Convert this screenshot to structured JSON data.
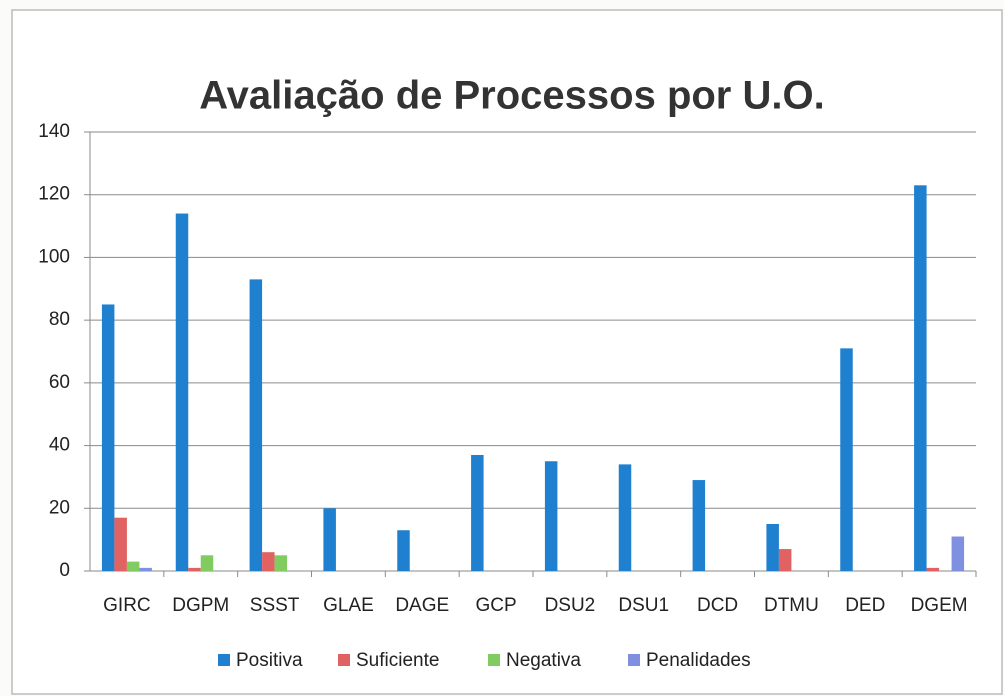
{
  "chart_data": {
    "type": "bar",
    "title": "Avaliação de Processos por U.O.",
    "categories": [
      "GIRC",
      "DGPM",
      "SSST",
      "GLAE",
      "DAGE",
      "GCP",
      "DSU2",
      "DSU1",
      "DCD",
      "DTMU",
      "DED",
      "DGEM"
    ],
    "series": [
      {
        "name": "Positiva",
        "color": "#1f80d0",
        "values": [
          85,
          114,
          93,
          20,
          13,
          37,
          35,
          34,
          29,
          15,
          71,
          123
        ]
      },
      {
        "name": "Suficiente",
        "color": "#e06262",
        "values": [
          17,
          1,
          6,
          0,
          0,
          0,
          0,
          0,
          0,
          7,
          0,
          1
        ]
      },
      {
        "name": "Negativa",
        "color": "#80cc60",
        "values": [
          3,
          5,
          5,
          0,
          0,
          0,
          0,
          0,
          0,
          0,
          0,
          0
        ]
      },
      {
        "name": "Penalidades",
        "color": "#8090e0",
        "values": [
          1,
          0,
          0,
          0,
          0,
          0,
          0,
          0,
          0,
          0,
          0,
          11
        ]
      }
    ],
    "ylim": [
      0,
      140
    ],
    "yticks": [
      0,
      20,
      40,
      60,
      80,
      100,
      120,
      140
    ],
    "grid": true,
    "legend": "bottom"
  }
}
